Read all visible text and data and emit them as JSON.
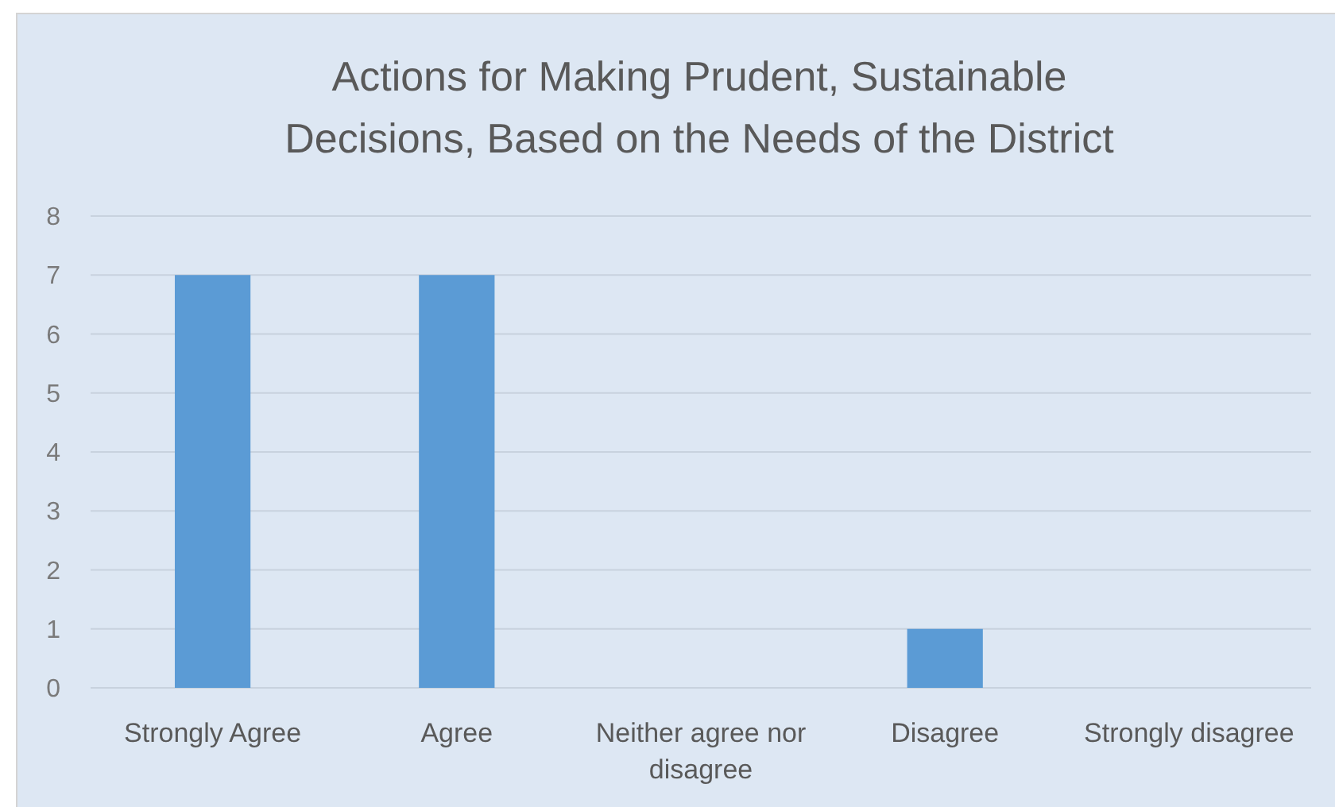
{
  "chart_data": {
    "type": "bar",
    "title": "Actions for Making Prudent, Sustainable Decisions, Based on the Needs of the District",
    "categories": [
      "Strongly Agree",
      "Agree",
      "Neither agree nor disagree",
      "Disagree",
      "Strongly disagree"
    ],
    "values": [
      7,
      7,
      0,
      1,
      0
    ],
    "color": "#5b9bd5",
    "ylim": [
      0,
      8
    ],
    "yticks": [
      0,
      1,
      2,
      3,
      4,
      5,
      6,
      7,
      8
    ],
    "grid": "y"
  }
}
